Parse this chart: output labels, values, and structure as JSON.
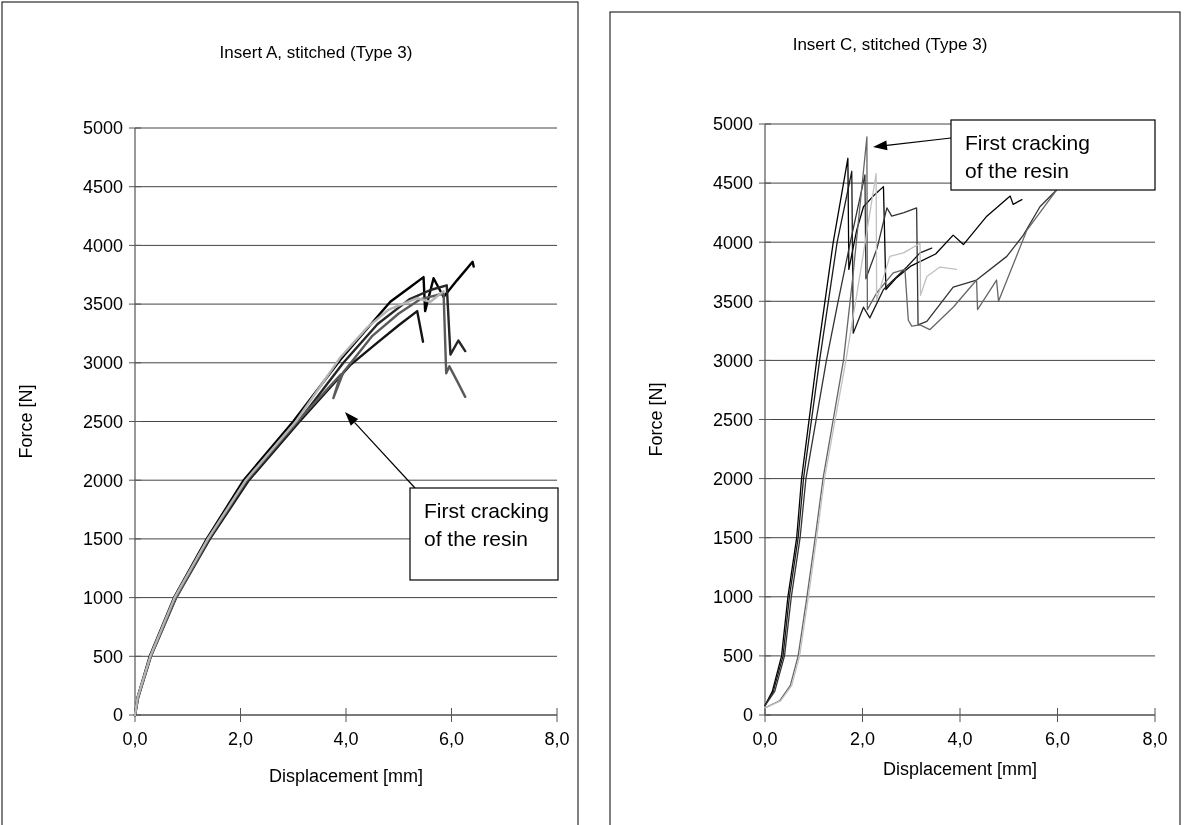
{
  "chart_data": [
    {
      "type": "line",
      "title": "Insert A, stitched (Type 3)",
      "xlabel": "Displacement [mm]",
      "ylabel": "Force [N]",
      "xlim": [
        0,
        8
      ],
      "xticks": [
        {
          "value": 0,
          "label": "0,0"
        },
        {
          "value": 2,
          "label": "2,0"
        },
        {
          "value": 4,
          "label": "4,0"
        },
        {
          "value": 6,
          "label": "6,0"
        },
        {
          "value": 8,
          "label": "8,0"
        }
      ],
      "ylim": [
        0,
        5000
      ],
      "yticks": [
        0,
        500,
        1000,
        1500,
        2000,
        2500,
        3000,
        3500,
        4000,
        4500,
        5000
      ],
      "grid": "y",
      "marker": "none",
      "line_style": "solid",
      "annotations": [
        "First cracking\nof the resin"
      ],
      "series": [
        {
          "color": "#000000",
          "x": [
            0,
            0.05,
            0.28,
            0.74,
            1.36,
            2.06,
            3.0,
            3.9,
            4.84,
            5.2,
            5.47,
            5.5,
            5.66,
            5.85,
            6.1,
            6.4,
            6.42
          ],
          "values": [
            0,
            150,
            500,
            1000,
            1500,
            2000,
            2500,
            3030,
            3520,
            3640,
            3730,
            3440,
            3720,
            3560,
            3700,
            3860,
            3820
          ]
        },
        {
          "color": "#141414",
          "x": [
            0,
            0.06,
            0.3,
            0.78,
            1.42,
            2.16,
            3.12,
            4.08,
            4.59,
            5.0,
            5.35,
            5.46
          ],
          "values": [
            0,
            150,
            500,
            1000,
            1500,
            2000,
            2500,
            2980,
            3170,
            3320,
            3440,
            3180
          ]
        },
        {
          "color": "#262626",
          "x": [
            0,
            0.05,
            0.29,
            0.77,
            1.4,
            2.14,
            3.1,
            3.95,
            4.6,
            5.2,
            5.6,
            5.91,
            5.98,
            6.13,
            6.26
          ],
          "values": [
            0,
            150,
            500,
            1000,
            1500,
            2000,
            2500,
            3000,
            3330,
            3540,
            3620,
            3660,
            3070,
            3190,
            3100
          ]
        },
        {
          "color": "#5a5a5a",
          "x": [
            0,
            0.06,
            0.3,
            0.78,
            1.4,
            2.12,
            3.08,
            3.9,
            3.76,
            3.95,
            4.5,
            5.0,
            5.4,
            5.85,
            5.9,
            5.96,
            6.1,
            6.26
          ],
          "values": [
            0,
            150,
            500,
            1000,
            1500,
            2000,
            2500,
            2900,
            2700,
            2920,
            3230,
            3420,
            3540,
            3590,
            2910,
            2970,
            2850,
            2710
          ]
        },
        {
          "color": "#b4b4b4",
          "x": [
            0,
            0.05,
            0.29,
            0.75,
            1.38,
            2.1,
            3.05,
            3.9,
            4.4,
            4.8,
            5.35,
            5.6,
            5.85
          ],
          "values": [
            0,
            150,
            500,
            1000,
            1500,
            2000,
            2500,
            3050,
            3300,
            3450,
            3550,
            3520,
            3610
          ]
        }
      ]
    },
    {
      "type": "line",
      "title": "Insert C, stitched (Type 3)",
      "xlabel": "Displacement [mm]",
      "ylabel": "Force [N]",
      "xlim": [
        0,
        8
      ],
      "xticks": [
        {
          "value": 0,
          "label": "0,0"
        },
        {
          "value": 2,
          "label": "2,0"
        },
        {
          "value": 4,
          "label": "4,0"
        },
        {
          "value": 6,
          "label": "6,0"
        },
        {
          "value": 8,
          "label": "8,0"
        }
      ],
      "ylim": [
        0,
        5000
      ],
      "yticks": [
        0,
        500,
        1000,
        1500,
        2000,
        2500,
        3000,
        3500,
        4000,
        4500,
        5000
      ],
      "grid": "y",
      "marker": "none",
      "line_style": "solid",
      "annotations": [
        "First cracking\nof the resin"
      ],
      "series": [
        {
          "color": "#000000",
          "x": [
            0,
            0.15,
            0.34,
            0.47,
            0.65,
            0.75,
            1.06,
            1.23,
            1.4,
            1.7,
            1.72,
            1.88,
            2.02,
            2.22,
            2.43,
            2.48,
            2.7,
            3.0,
            3.5,
            3.86,
            4.07,
            4.55,
            5.03,
            5.09,
            5.27
          ],
          "values": [
            80,
            200,
            500,
            1000,
            1500,
            2000,
            3000,
            3500,
            4000,
            4710,
            3770,
            4100,
            4300,
            4390,
            4470,
            3600,
            3700,
            3800,
            3900,
            4060,
            3980,
            4220,
            4390,
            4320,
            4360
          ]
        },
        {
          "color": "#1a1a1a",
          "x": [
            0,
            0.17,
            0.37,
            0.5,
            0.68,
            0.79,
            1.12,
            1.3,
            1.48,
            1.78,
            1.81,
            2.02,
            2.15,
            2.43,
            2.91,
            3.18,
            3.42
          ],
          "values": [
            80,
            200,
            500,
            1000,
            1500,
            2000,
            3000,
            3500,
            4000,
            4600,
            3230,
            3450,
            3360,
            3600,
            3790,
            3910,
            3950
          ]
        },
        {
          "color": "#333333",
          "x": [
            0,
            0.2,
            0.4,
            0.54,
            0.72,
            0.84,
            1.26,
            1.5,
            1.75,
            2.05,
            2.07,
            2.3,
            2.5,
            2.6,
            2.85,
            3.11,
            3.14,
            3.32,
            3.86,
            4.34,
            4.96,
            5.3,
            5.64,
            6.0
          ],
          "values": [
            80,
            200,
            500,
            1000,
            1500,
            2000,
            3000,
            3500,
            4000,
            4570,
            3690,
            3950,
            4290,
            4220,
            4250,
            4290,
            3300,
            3330,
            3620,
            3680,
            3880,
            4060,
            4300,
            4450
          ]
        },
        {
          "color": "#666666",
          "x": [
            0,
            0.3,
            0.52,
            0.68,
            0.86,
            1.03,
            1.19,
            1.61,
            1.8,
            2.09,
            2.1,
            2.29,
            2.63,
            2.87,
            2.94,
            3.01,
            3.18,
            3.38,
            3.86,
            4.34,
            4.36,
            4.75,
            4.79,
            5.37,
            5.98
          ],
          "values": [
            60,
            120,
            250,
            500,
            1000,
            1500,
            2000,
            3000,
            3700,
            4890,
            3430,
            3570,
            3740,
            3770,
            3340,
            3290,
            3300,
            3260,
            3450,
            3680,
            3430,
            3680,
            3500,
            4100,
            4440
          ]
        },
        {
          "color": "#c0c0c0",
          "x": [
            0,
            0.32,
            0.55,
            0.71,
            0.89,
            1.06,
            1.22,
            1.66,
            1.9,
            2.28,
            2.29,
            2.56,
            2.84,
            3.18,
            3.19,
            3.32,
            3.59,
            3.93
          ],
          "values": [
            60,
            120,
            250,
            500,
            1000,
            1500,
            2000,
            3000,
            3600,
            4580,
            3510,
            3880,
            3910,
            3990,
            3550,
            3710,
            3790,
            3770
          ]
        }
      ]
    }
  ]
}
